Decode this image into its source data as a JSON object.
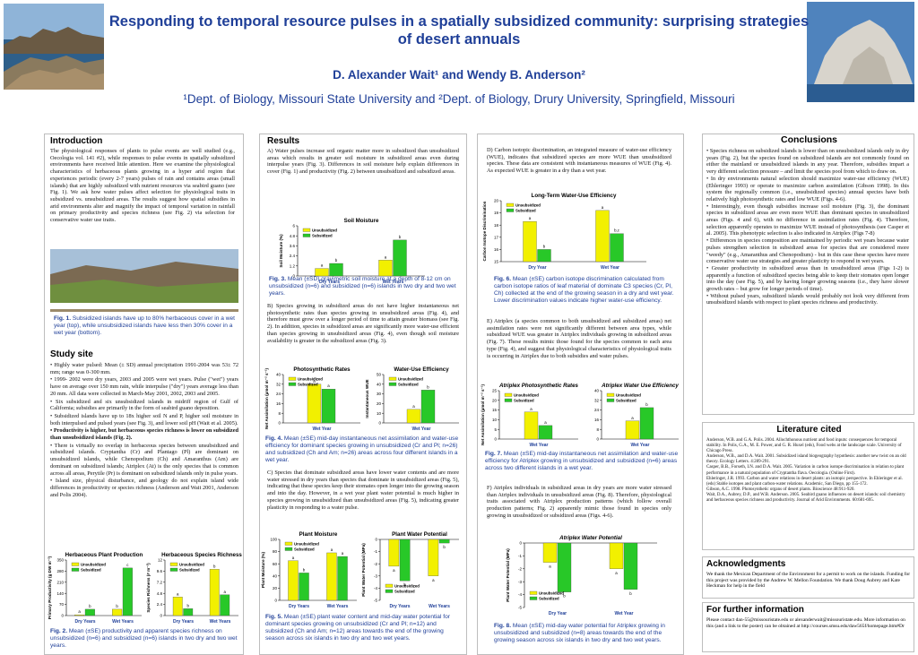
{
  "header": {
    "title_line1": "Responding to temporal resource pulses in a spatially subsidized community: surprising strategies",
    "title_line2": "of desert annuals",
    "authors": "D. Alexander Wait¹ and Wendy B. Anderson²",
    "affiliations": "¹Dept. of Biology, Missouri State University and ²Dept. of Biology, Drury University, Springfield, Missouri"
  },
  "intro": {
    "heading": "Introduction",
    "text": "The physiological responses of plants to pulse events are well studied (e.g., Oecologia vol. 141 #2), while responses to pulse events in spatially subsidized environments have received little attention. Here we examine the physiological characteristics of herbaceous plants growing in a hyper arid region that experiences periodic (every 2-7 years) pulses of rain and contains areas (small islands) that are highly subsidized with nutrient resources via seabird guano (see Fig. 1). We ask how water pulses affect selection for physiological traits in subsidized vs. unsubsidized areas. The results suggest how spatial subsidies in arid environments alter and magnify the impact of temporal variation in rainfall on primary productivity and species richness (see Fig. 2) via selection for conservative water use traits.",
    "fig1_caption_label": "Fig. 1.",
    "fig1_caption": "Subsidized islands have up to 80% herbaceous cover in a wet year (top), while unsubsidized islands have less then 30% cover in a wet year (bottom)."
  },
  "study": {
    "heading": "Study site",
    "bullets": [
      "Highly water pulsed: Mean (± SD) annual precipitation 1991-2004 was 53± 72 mm; range was 0-300 mm.",
      "1999- 2002 were dry years, 2003 and 2005 were wet years. Pulse (\"wet\") years have on average over 150 mm rain, while interpulse (\"dry\") years average less than 20 mm. All data were collected in March-May 2001, 2002, 2003 and 2005.",
      "Six subsidized and six unsubsidized islands in midriff region of Gulf of California; subsidies are primarily in the form of seabird guano deposition.",
      "Subsidized islands have up to 18x higher soil N and P, higher soil moisture in both interpulsed and pulsed years (see Fig. 3), and lower soil pH (Wait et al. 2005).",
      "Productivity is higher, but herbaceous species richness is lower on subsidized than unsubsidized islands (Fig. 2).",
      "There is virtually no overlap in herbaceous species between unsubsidized and subsidized islands. Cryptantha (Cr) and Plantago (Pl) are dominant on unsubsidized islands, while Chenopodium (Ch) and Amaranthus (Am) are dominant on subsidized islands; Atriplex (At) is the only species that is common across all areas, Perytile (Pr) is dominant on subsidized islands only in pulse years.",
      "Island size, physical disturbance, and geology do not explain island wide differences in productivity or species richness (Anderson and Wait 2001, Anderson and Polis 2004)."
    ],
    "fig2_caption_label": "Fig. 2.",
    "fig2_caption": "Mean (±SE) productivity and apparent species richness on unsubsidized (n=6) and subsidized (n=6) islands in two dry and two wet years."
  },
  "results": {
    "heading": "Results",
    "textA": "A) Water pulses increase soil organic matter more in subsidized than unsubsidized areas which results in greater soil moisture in subsidized areas even during interpulse years (Fig. 3). Differences in soil moisture help explain differences in cover (Fig. 1) and productivity (Fig. 2) between unsubsidized and subsidized areas.",
    "fig3_caption_label": "Fig. 3.",
    "fig3_caption": "Mean (±SD) gravimetric soil moisture at a depth of 8-12 cm on unsubsidized (n=6) and subsidized (n=6) islands in two dry and two wet years.",
    "textB": "B) Species growing in subsidized areas do not have higher instantaneous net photosynthetic rates than species growing in unsubsidized areas (Fig. 4), and therefore must grow over a longer period of time to attain greater biomass (see Fig. 2). In addition, species in subsidized areas are significantly more water-use efficient than species growing in unsubsidized areas (Fig. 4), even though soil moisture availability is greater in the subsidized areas (Fig. 3).",
    "fig4_caption_label": "Fig. 4.",
    "fig4_caption": "Mean (±SE) mid-day instantaneous net assimilation and water-use efficiency for dominant species growing in unsubsidized (Cr and Pl; n=26) and subsidized (Ch and Am; n=26) areas across four different islands in a wet year.",
    "textC": "C) Species that dominate subsidized areas have lower water contents and are more water stressed in dry years than species that dominate in unsubsidized areas (Fig. 5), indicating that these species keep their stomates open longer into the growing season and into the day. However, in a wet year plant water potential is much higher in species growing in unsubsidized than unsubsidized areas (Fig. 5), indicating greater plasticity in responding to a water pulse.",
    "fig5_caption_label": "Fig. 5.",
    "fig5_caption": "Mean (±SE) plant water content and mid-day water potential for dominant species growing on unsubsidized (Cr and Pl; n=12) and subsidized (Ch and Am; n=12) areas towards the end of the growing season across six islands in two dry and two wet years."
  },
  "col3": {
    "textD": "D) Carbon isotopic discrimination, an integrated measure of water-use efficiency (WUE), indicates that subsidized species are more WUE than unsubsidized species. These data are consistent with instantaneous measures of WUE (Fig. 4). As expected WUE is greater in a dry than a wet year.",
    "fig6_caption_label": "Fig. 6.",
    "fig6_caption": "Mean (±SE) carbon isotope discrimination calculated from carbon isotope ratios of leaf material of dominate C3 species (Cr, Pl, Ch) collected at the end of the growing season in a dry and wet year. Lower discrimination values indicate higher water-use efficiency.",
    "textE": "E) Atriplex (a species common to both unsubsidized and subsidized areas) net assimilation rates were not significantly different between area types, while subsidized WUE was greater in Atriplex individuals growing in subsidized areas (Fig. 7). These results mimic those found for the species common to each area type (Fig. 4), and suggest that physiological characteristics of physiological traits is occurring in Atriplex due to both subsidies and water pulses.",
    "fig7_caption_label": "Fig. 7.",
    "fig7_caption": "Mean (±SE) mid-day instantaneous net assimilation and water-use efficiency for Atriplex growing in unsubsidized and subsidized (n=6) areas across two different islands in a wet year.",
    "textF": "F) Atriplex individuals in subsidized areas in dry years are more water stressed than Atriplex individuals in unsubsidized areas (Fig. 8). Therefore, physiological traits associated with Atriplex production patterns (which follow overall production patterns; Fig. 2) apparently mimic those found in species only growing in unsubsidized or subsidized areas (Figs. 4-6).",
    "fig8_caption_label": "Fig. 8.",
    "fig8_caption": "Mean (±SE) mid-day water potential for Atriplex growing in unsubsidized and subsidized (n=8) areas towards the end of the growing season across six islands in two dry and two wet years."
  },
  "conclusions": {
    "heading": "Conclusions",
    "bullets": [
      "• Species richness on subsidized islands is lower than on unsubsidized islands only in dry years (Fig. 2), but the species found on subsidized islands are not commonly found on either the mainland or unsubsidized islands in any year. Therefore, subsidies impart a very different selection pressure – and limit the species pool from which to draw on.",
      "• In dry environments natural selection should maximize water-use efficiency (WUE) (Ehleringer 1993) or operate to maximize carbon assimilation (Gibson 1998). In this system the regionally common (i.e., unsubsidized species) annual species have both relatively high photosynthetic rates and low WUE (Figs. 4-6).",
      "• Interestingly, even though subsidies increase soil moisture (Fig. 3), the dominant species in subsidized areas are even more WUE than dominant species in unsubsidized areas (Figs. 4 and 6), with no difference in assimilation rates (Fig. 4). Therefore, selection apparently operates to maximize WUE instead of photosynthesis (see Casper et al. 2005). This phenotypic selection is also indicated in Atriplex (Figs 7-8)",
      "• Differences in species composition are maintained by periodic wet years because water pulses strengthen selection in subsidized areas for species that are considered more \"weedy\" (e.g., Amaranthus and Chenopodium) - but in this case these species have more conservative water use strategies and greater plasticity to respond in wet years.",
      "• Greater productivity in subsidized areas than in unsubsidized areas (Figs 1-2) is apparently a function of subsidized species being able to keep their stomates open longer into the day (see Fig. 5), and by having longer growing seasons (i.e., they have slower growth rates – but grow for longer periods of time).",
      "• Without pulsed years, subsidized islands would probably not look very different from unsubsidized islands with respect to plant species richness and productivity."
    ]
  },
  "literature": {
    "heading": "Literature cited",
    "refs": [
      "Anderson, W.B. and G.A. Polis. 2004. Allochthonous nutrient and food inputs: consequences for temporal stability. In Polis, G.A., M. E. Power, and G. R. Huxel (eds), Food webs at the landscape scale. University of Chicago Press.",
      "Anderson, W.B., and D.A. Wait. 2001. Subsidized island biogeography hypothesis: another new twist on an old theory. Ecology Letters. 4:289-291.",
      "Casper, B.B., Forseth, I.N. and D.A. Wait. 2005. Variation in carbon isotope discrimination in relation to plant performance in a natural population of Cryptantha flava. Oecologia. (Online First).",
      "Ehleringer, J.R. 1993. Carbon and water relations in desert plants: an isotopic perspective. In Ehleringer et al. (eds) Stable isotopes and plant carbon-water relations. Academic, San Diego, pp 155-172.",
      "Gibson, A.C. 1998. Photosynthetic organs of desert plants. Bioscience 48:911-920.",
      "Wait, D.A., Aubrey, D.P., and W.B. Anderson. 2005. Seabird guano influences on desert islands: soil chemistry and herbaceous species richness and productivity. Journal of Arid Environments. 60:681-695."
    ]
  },
  "ack": {
    "heading": "Acknowledgments",
    "text": "We thank the Mexican Department of the Environment for a permit to work on the islands. Funding for this project was provided by the Andrew W. Mellon Foundation. We thank Doug Aubrey and Kate Heckman for help in the field"
  },
  "info": {
    "heading": "For further information",
    "text": "Please contact dan-55@missouristate.edu or alexanderwait@missouristate.edu. More information on this (and a link to the poster) can be obtained at http://courses.smsu.edu/daw565f/homepage.htm#Dr"
  },
  "legend": {
    "unsub": "Unsubsidized",
    "sub": "Subsidized"
  },
  "colors": {
    "unsub": "#f2f000",
    "sub": "#28c828",
    "title": "#1f3f98"
  },
  "chart_data": [
    {
      "id": "fig3",
      "type": "bar",
      "title": "Soil Moisture",
      "ylabel": "Soil Moisture (%)",
      "categories": [
        "Dry Years",
        "Wet Years"
      ],
      "ylim": [
        0,
        6
      ],
      "series": [
        {
          "name": "Unsubsidized",
          "values": [
            0.9,
            1.9
          ]
        },
        {
          "name": "Subsidized",
          "values": [
            1.5,
            4.3
          ]
        }
      ],
      "labels": [
        [
          "a",
          "a"
        ],
        [
          "b",
          "b"
        ]
      ]
    },
    {
      "id": "fig6",
      "type": "bar",
      "title": "Long-Term Water-Use Efficiency",
      "ylabel": "Carbon Isotope Discrimination",
      "categories": [
        "Dry Year",
        "Wet Year"
      ],
      "ylim": [
        15,
        20
      ],
      "series": [
        {
          "name": "Unsubsidized",
          "values": [
            18.3,
            19.2
          ]
        },
        {
          "name": "Subsidized",
          "values": [
            16.0,
            17.3
          ]
        }
      ],
      "labels": [
        [
          "a",
          "a"
        ],
        [
          "b",
          "b,c"
        ]
      ]
    },
    {
      "id": "fig4a",
      "type": "bar",
      "title": "Photosynthetic Rates",
      "ylabel": "Net Assimilation (µmol m⁻² s⁻¹)",
      "categories": [
        "Wet Year"
      ],
      "ylim": [
        0,
        40
      ],
      "series": [
        {
          "name": "Unsubsidized",
          "values": [
            32
          ]
        },
        {
          "name": "Subsidized",
          "values": [
            28
          ]
        }
      ],
      "labels": [
        [
          "a"
        ],
        [
          "a"
        ]
      ]
    },
    {
      "id": "fig4b",
      "type": "bar",
      "title": "Water-Use Efficiency",
      "ylabel": "Instantaneous WUE",
      "categories": [
        "Wet Year"
      ],
      "ylim": [
        0,
        50
      ],
      "series": [
        {
          "name": "Unsubsidized",
          "values": [
            14
          ]
        },
        {
          "name": "Subsidized",
          "values": [
            34
          ]
        }
      ],
      "labels": [
        [
          "a"
        ],
        [
          "b"
        ]
      ]
    },
    {
      "id": "fig7a",
      "type": "bar",
      "title": "Atriplex Photosynthetic Rates",
      "ylabel": "Net Assimilation (µmol m⁻² s⁻¹)",
      "categories": [
        "Wet Year"
      ],
      "ylim": [
        0,
        25
      ],
      "series": [
        {
          "name": "Unsubsidized",
          "values": [
            14
          ]
        },
        {
          "name": "Subsidized",
          "values": [
            7
          ]
        }
      ],
      "labels": [
        [
          "a"
        ],
        [
          "a"
        ]
      ]
    },
    {
      "id": "fig7b",
      "type": "bar",
      "title": "Atriplex Water Use Efficiency",
      "ylabel": "",
      "categories": [
        "Wet Year"
      ],
      "ylim": [
        0,
        40
      ],
      "series": [
        {
          "name": "Unsubsidized",
          "values": [
            15
          ]
        },
        {
          "name": "Subsidized",
          "values": [
            26
          ]
        }
      ],
      "labels": [
        [
          "a"
        ],
        [
          "b"
        ]
      ]
    },
    {
      "id": "fig2a",
      "type": "bar",
      "title": "Herbaceous Plant Production",
      "ylabel": "Primary Productivity (g DW m⁻²)",
      "categories": [
        "Dry Years",
        "Wet Years"
      ],
      "ylim": [
        0,
        350
      ],
      "series": [
        {
          "name": "Unsubsidized",
          "values": [
            5,
            40
          ]
        },
        {
          "name": "Subsidized",
          "values": [
            40,
            300
          ]
        }
      ],
      "labels": [
        [
          "a",
          "b"
        ],
        [
          "b",
          "c"
        ]
      ]
    },
    {
      "id": "fig2b",
      "type": "bar",
      "title": "Herbaceous Species Richness",
      "ylabel": "Species Richness (# m⁻²)",
      "categories": [
        "Dry Years",
        "Wet Years"
      ],
      "ylim": [
        0,
        12
      ],
      "series": [
        {
          "name": "Unsubsidized",
          "values": [
            4,
            10
          ]
        },
        {
          "name": "Subsidized",
          "values": [
            1.5,
            4.5
          ]
        }
      ],
      "labels": [
        [
          "a",
          "b"
        ],
        [
          "b",
          "a"
        ]
      ]
    },
    {
      "id": "fig5a",
      "type": "bar",
      "title": "Plant Moisture",
      "ylabel": "Plant Moisture (%)",
      "categories": [
        "Dry Years",
        "Wet Years"
      ],
      "ylim": [
        0,
        100
      ],
      "series": [
        {
          "name": "Unsubsidized",
          "values": [
            65,
            78
          ]
        },
        {
          "name": "Subsidized",
          "values": [
            45,
            72
          ]
        }
      ],
      "labels": [
        [
          "a",
          "a"
        ],
        [
          "b",
          "a"
        ]
      ]
    },
    {
      "id": "fig5b",
      "type": "bar",
      "title": "Plant Water Potential",
      "ylabel": "Plant Water Potential (MPa)",
      "categories": [
        "Dry Years",
        "Wet Years"
      ],
      "ylim": [
        -5,
        0
      ],
      "series": [
        {
          "name": "Unsubsidized",
          "values": [
            -2.2,
            -3.0
          ]
        },
        {
          "name": "Subsidized",
          "values": [
            -3.4,
            -0.3
          ]
        }
      ],
      "labels": [
        [
          "a",
          "a"
        ],
        [
          "b",
          "b"
        ]
      ]
    },
    {
      "id": "fig8",
      "type": "bar",
      "title": "Atriplex Water Potential",
      "ylabel": "Plant Water Potential (MPa)",
      "categories": [
        "Dry Year",
        "Wet Year"
      ],
      "ylim": [
        -5,
        0
      ],
      "series": [
        {
          "name": "Unsubsidized",
          "values": [
            -1.5,
            -2.0
          ]
        },
        {
          "name": "Subsidized",
          "values": [
            -3.8,
            -3.6
          ]
        }
      ],
      "labels": [
        [
          "a",
          "a"
        ],
        [
          "b",
          "b"
        ]
      ]
    }
  ]
}
